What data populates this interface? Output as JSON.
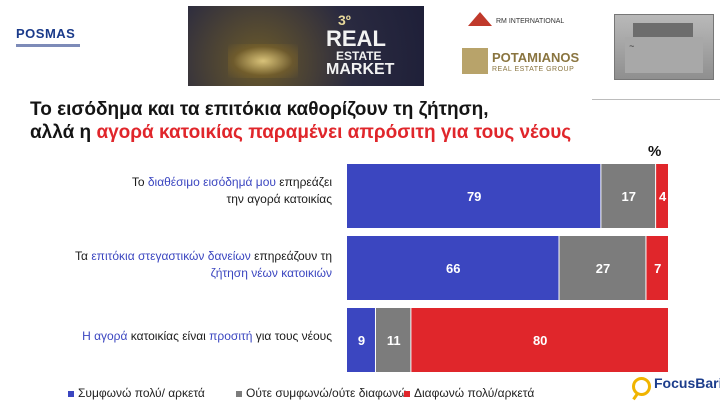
{
  "header": {
    "posmas_logo": "POSMAS",
    "rem_logo": {
      "number": "3º",
      "line1": "REAL",
      "line2": "ESTATE",
      "line3": "MARKET"
    },
    "rm_logo": "RM INTERNATIONAL",
    "potamianos_logo": {
      "name": "POTAMIANOS",
      "sub": "REAL ESTATE GROUP"
    }
  },
  "title": {
    "line1": "Το εισόδημα και τα επιτόκια καθορίζουν τη ζήτηση,",
    "line2_prefix": "αλλά η ",
    "line2_highlight": "αγορά κατοικίας παραμένει απρόσιτη για τους νέους"
  },
  "rows": [
    {
      "l1_pre": "Το ",
      "l1_hl": "διαθέσιμο εισόδημά μου",
      "l1_post": " επηρεάζει",
      "l2_pre": "την αγορά κατοικίας",
      "l2_hl": "",
      "l2_post": ""
    },
    {
      "l1_pre": "Τα ",
      "l1_hl": "επιτόκια στεγαστικών δανείων",
      "l1_post": " επηρεάζουν τη",
      "l2_pre": "",
      "l2_hl": "ζήτηση νέων κατοικιών",
      "l2_post": ""
    },
    {
      "l1_pre": "",
      "l1_hl": "Η αγορά",
      "l1_post": " κατοικίας είναι ",
      "l1_hl2": "προσιτή",
      "l1_post2": " για τους νέους",
      "l2_pre": "",
      "l2_hl": "",
      "l2_post": ""
    }
  ],
  "chart_data": {
    "type": "bar",
    "orientation": "horizontal",
    "stacked": true,
    "unit_label": "%",
    "categories": [
      "Το διαθέσιμο εισόδημά μου επηρεάζει την αγορά κατοικίας",
      "Τα επιτόκια στεγαστικών δανείων επηρεάζουν τη ζήτηση νέων κατοικιών",
      "Η αγορά κατοικίας είναι προσιτή για τους νέους"
    ],
    "series": [
      {
        "name": "Συμφωνώ πολύ/ αρκετά",
        "color": "#3b46c0",
        "values": [
          79,
          66,
          9
        ]
      },
      {
        "name": "Ούτε συμφωνώ/ούτε διαφωνώ",
        "color": "#7c7c7c",
        "values": [
          17,
          27,
          11
        ]
      },
      {
        "name": "Διαφωνώ πολύ/αρκετά",
        "color": "#e0262b",
        "values": [
          4,
          7,
          80
        ]
      }
    ],
    "xlim": [
      0,
      100
    ],
    "legend_position": "bottom"
  },
  "colors": {
    "accent_red": "#e0262b",
    "accent_blue": "#3b46c0",
    "neutral_gray": "#7c7c7c"
  },
  "footer": {
    "focus_logo": "FocusBari"
  }
}
